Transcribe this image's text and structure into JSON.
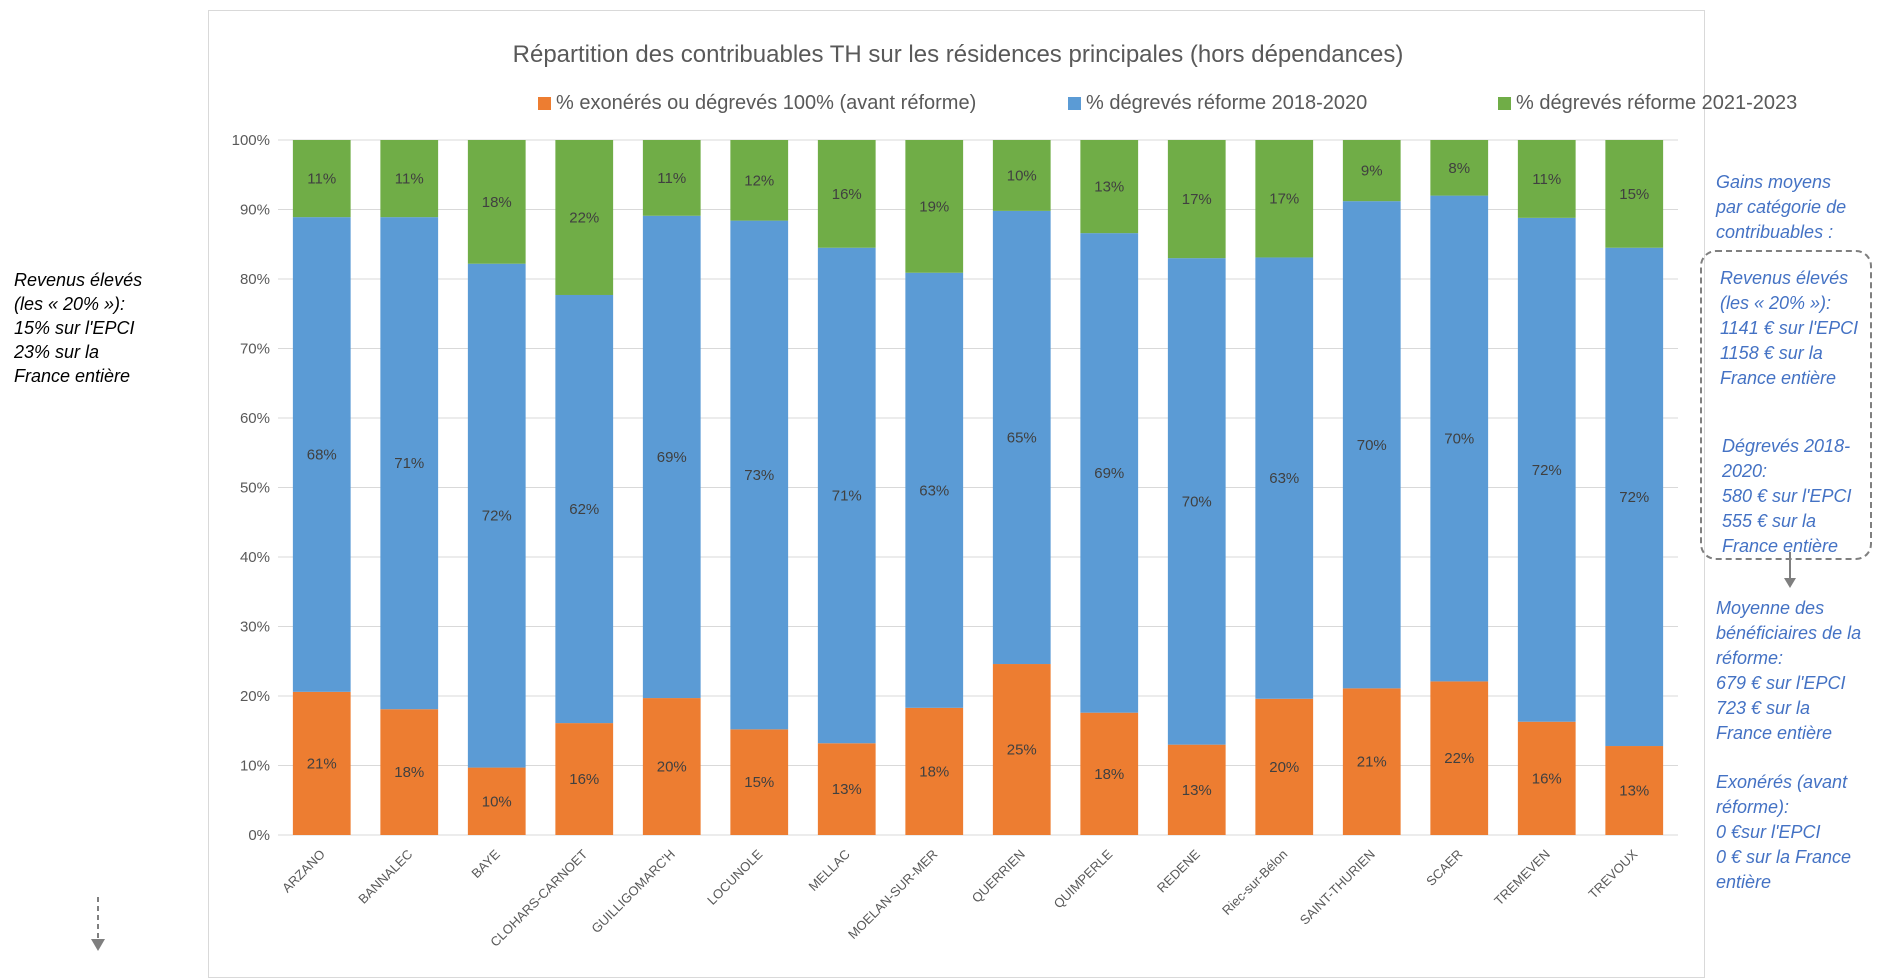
{
  "chart_data": {
    "type": "bar",
    "stacked": true,
    "title": "Répartition des contribuables TH sur les résidences principales (hors dépendances)",
    "categories": [
      "ARZANO",
      "BANNALEC",
      "BAYE",
      "CLOHARS-CARNOET",
      "GUILLIGOMARC'H",
      "LOCUNOLE",
      "MELLAC",
      "MOELAN-SUR-MER",
      "QUERRIEN",
      "QUIMPERLE",
      "REDENE",
      "Riec-sur-Bélon",
      "SAINT-THURIEN",
      "SCAER",
      "TREMEVEN",
      "TREVOUX"
    ],
    "series": [
      {
        "name": "% exonérés ou dégrevés 100% (avant réforme)",
        "color": "#ed7d31",
        "values": [
          20.6,
          18.1,
          9.7,
          16.1,
          19.7,
          15.2,
          13.2,
          18.3,
          24.6,
          17.6,
          13.0,
          19.6,
          21.1,
          22.1,
          16.3,
          12.8
        ],
        "labels": [
          "21%",
          "18%",
          "10%",
          "16%",
          "20%",
          "15%",
          "13%",
          "18%",
          "25%",
          "18%",
          "13%",
          "20%",
          "21%",
          "22%",
          "16%",
          "13%"
        ]
      },
      {
        "name": "% dégrevés réforme 2018-2020",
        "color": "#5b9bd5",
        "values": [
          68.3,
          70.8,
          72.5,
          61.6,
          69.4,
          73.2,
          71.3,
          62.6,
          65.2,
          69.0,
          70.0,
          63.5,
          70.1,
          69.9,
          72.5,
          71.7
        ],
        "labels": [
          "68%",
          "71%",
          "72%",
          "62%",
          "69%",
          "73%",
          "71%",
          "63%",
          "65%",
          "69%",
          "70%",
          "63%",
          "70%",
          "70%",
          "72%",
          "72%"
        ]
      },
      {
        "name": "% dégrevés réforme 2021-2023",
        "color": "#70ad47",
        "values": [
          11.1,
          11.1,
          17.8,
          22.3,
          10.9,
          11.6,
          15.5,
          19.1,
          10.2,
          13.4,
          17.0,
          16.9,
          8.8,
          8.0,
          11.2,
          15.5
        ],
        "labels": [
          "11%",
          "11%",
          "18%",
          "22%",
          "11%",
          "12%",
          "16%",
          "19%",
          "10%",
          "13%",
          "17%",
          "17%",
          "9%",
          "8%",
          "11%",
          "15%"
        ]
      }
    ],
    "ylim": [
      0,
      100
    ],
    "yticks": [
      "0%",
      "10%",
      "20%",
      "30%",
      "40%",
      "50%",
      "60%",
      "70%",
      "80%",
      "90%",
      "100%"
    ],
    "xlabel": "",
    "ylabel": "",
    "grid": true,
    "legend_position": "top"
  },
  "notes": {
    "left": "Revenus élevés\n(les « 20% »):\n15% sur l'EPCI\n23% sur la\nFrance entière",
    "right_heading": "Gains moyens\npar catégorie de\ncontribuables :",
    "right_revenus": "Revenus élevés\n(les « 20% »):\n1141 € sur l'EPCI\n1158 € sur la\nFrance entière",
    "right_degreves": "Dégrevés 2018-\n2020:\n580 € sur l'EPCI\n555 € sur  la\nFrance entière",
    "right_moyenne": "Moyenne des\nbénéficiaires de la\nréforme:\n679 € sur l'EPCI\n723 €  sur la\nFrance entière",
    "right_exoneres": "Exonérés (avant\nréforme):\n0 €sur l'EPCI\n0 €  sur la France\nentière"
  }
}
